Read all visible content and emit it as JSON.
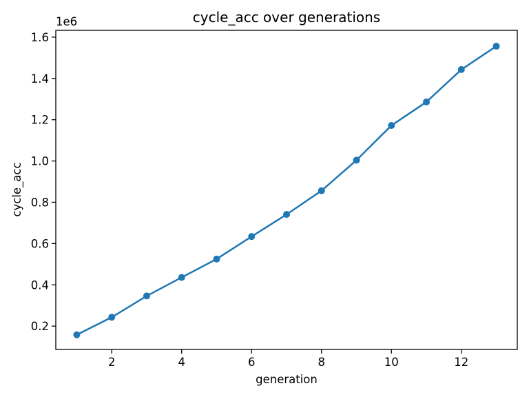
{
  "figure": {
    "background_color": "#ffffff",
    "spine_color": "#000000",
    "text_color": "#000000"
  },
  "chart_data": {
    "type": "line",
    "title": "cycle_acc over generations",
    "xlabel": "generation",
    "ylabel": "cycle_acc",
    "y_offset_label": "1e6",
    "x": [
      1,
      2,
      3,
      4,
      5,
      6,
      7,
      8,
      9,
      10,
      11,
      12,
      13
    ],
    "y": [
      158000,
      243000,
      346000,
      436000,
      525000,
      634000,
      741000,
      856000,
      1004000,
      1172000,
      1286000,
      1443000,
      1556000
    ],
    "xlim": [
      0.4,
      13.6
    ],
    "ylim": [
      87000,
      1633000
    ],
    "xticks": [
      2,
      4,
      6,
      8,
      10,
      12
    ],
    "xtick_labels": [
      "2",
      "4",
      "6",
      "8",
      "10",
      "12"
    ],
    "yticks": [
      200000,
      400000,
      600000,
      800000,
      1000000,
      1200000,
      1400000,
      1600000
    ],
    "ytick_labels": [
      "0.2",
      "0.4",
      "0.6",
      "0.8",
      "1.0",
      "1.2",
      "1.4",
      "1.6"
    ],
    "grid": false,
    "legend": null,
    "line_color": "#1f77b4",
    "marker": "o",
    "marker_color": "#1f77b4"
  }
}
